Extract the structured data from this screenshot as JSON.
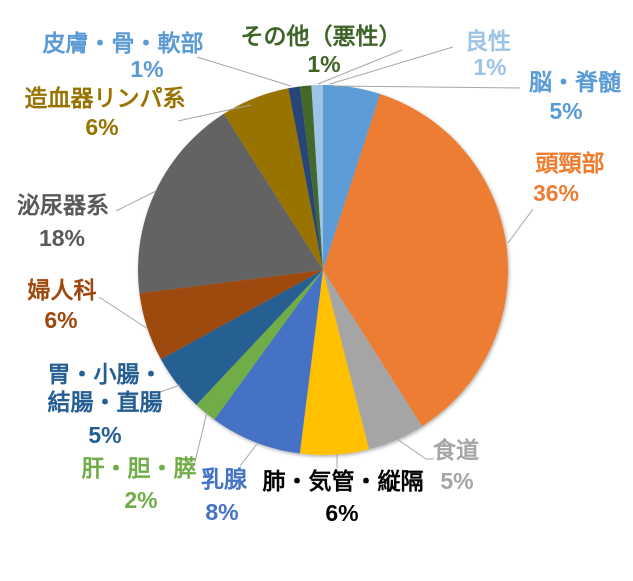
{
  "background_color": "#ffffff",
  "leader_line_color": "#A6A6A6",
  "chart_data": {
    "type": "pie",
    "title": "",
    "unit": "%",
    "total": 100,
    "start_angle_deg": 0,
    "direction": "clockwise",
    "legend": "none",
    "labels_outside": true,
    "slices": [
      {
        "id": "brain-spinal",
        "label": "脳・脊髄",
        "pct": "5%",
        "value": 5,
        "color": "#5B9BD5",
        "label_color": "#5B9BD5"
      },
      {
        "id": "head-neck",
        "label": "頭頸部",
        "pct": "36%",
        "value": 36,
        "color": "#ED7D31",
        "label_color": "#ED7D31"
      },
      {
        "id": "esophagus",
        "label": "食道",
        "pct": "5%",
        "value": 5,
        "color": "#A5A5A5",
        "label_color": "#A6A6A6"
      },
      {
        "id": "lung-trachea-mediastinum",
        "label": "肺・気管・縦隔",
        "pct": "6%",
        "value": 6,
        "color": "#FFC000",
        "label_color": "#000000"
      },
      {
        "id": "breast",
        "label": "乳腺",
        "pct": "8%",
        "value": 8,
        "color": "#4472C4",
        "label_color": "#4472C4"
      },
      {
        "id": "liver-gallbladder-pancreas",
        "label": "肝・胆・膵",
        "pct": "2%",
        "value": 2,
        "color": "#70AD47",
        "label_color": "#70AD47"
      },
      {
        "id": "stomach-intestine-colon-rectum",
        "label": "胃・小腸・\n結腸・直腸",
        "pct": "5%",
        "value": 5,
        "color": "#255E91",
        "label_color": "#255E91"
      },
      {
        "id": "gynecology",
        "label": "婦人科",
        "pct": "6%",
        "value": 6,
        "color": "#9E480E",
        "label_color": "#9E480E"
      },
      {
        "id": "urinary",
        "label": "泌尿器系",
        "pct": "18%",
        "value": 18,
        "color": "#636363",
        "label_color": "#595959"
      },
      {
        "id": "hematopoietic-lymphatic",
        "label": "造血器リンパ系",
        "pct": "6%",
        "value": 6,
        "color": "#997300",
        "label_color": "#997300"
      },
      {
        "id": "skin-bone-soft-tissue",
        "label": "皮膚・骨・軟部",
        "pct": "1%",
        "value": 1,
        "color": "#264478",
        "label_color": "#5B9BD5"
      },
      {
        "id": "other-malignant",
        "label": "その他（悪性）",
        "pct": "1%",
        "value": 1,
        "color": "#43682B",
        "label_color": "#3F6428"
      },
      {
        "id": "benign",
        "label": "良性",
        "pct": "1%",
        "value": 1,
        "color": "#9DC3E6",
        "label_color": "#9DC3E6"
      }
    ]
  }
}
